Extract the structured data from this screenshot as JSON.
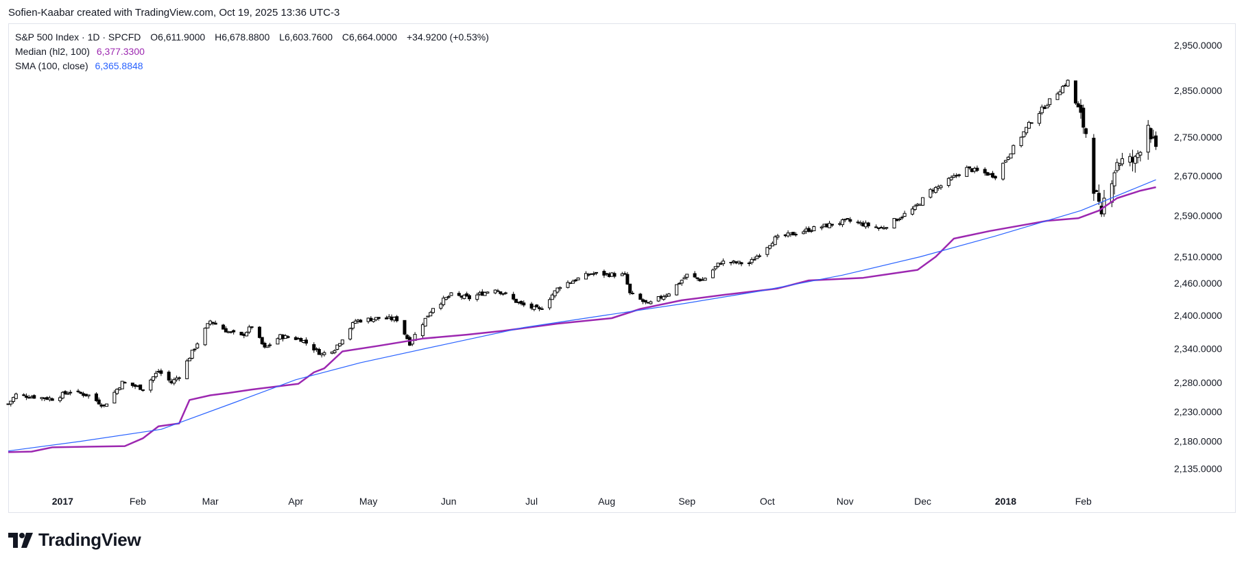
{
  "credit": "Sofien-Kaabar created with TradingView.com, Oct 19, 2025 13:36 UTC-3",
  "legend": {
    "symbol": "S&P 500 Index · 1D · SPCFD",
    "open": "O6,611.9000",
    "high": "H6,678.8800",
    "low": "L6,603.7600",
    "close": "C6,664.0000",
    "change": "+34.9200 (+0.53%)",
    "median_label": "Median (hl2, 100)",
    "median_value": "6,377.3300",
    "sma_label": "SMA (100, close)",
    "sma_value": "6,365.8848"
  },
  "brand": {
    "name": "TradingView",
    "icon": "tradingview-logo-icon"
  },
  "colors": {
    "median": "#9c27b0",
    "sma": "#2962ff",
    "candle": "#000000",
    "axis_text": "#131722",
    "border": "#e0e3eb"
  },
  "chart_data": {
    "type": "candlestick",
    "price_scale": "logarithmic",
    "y_ticks": [
      {
        "value": 2950,
        "label": "2,950.0000"
      },
      {
        "value": 2850,
        "label": "2,850.0000"
      },
      {
        "value": 2750,
        "label": "2,750.0000"
      },
      {
        "value": 2670,
        "label": "2,670.0000"
      },
      {
        "value": 2590,
        "label": "2,590.0000"
      },
      {
        "value": 2510,
        "label": "2,510.0000"
      },
      {
        "value": 2460,
        "label": "2,460.0000"
      },
      {
        "value": 2400,
        "label": "2,400.0000"
      },
      {
        "value": 2340,
        "label": "2,340.0000"
      },
      {
        "value": 2280,
        "label": "2,280.0000"
      },
      {
        "value": 2230,
        "label": "2,230.0000"
      },
      {
        "value": 2180,
        "label": "2,180.0000"
      },
      {
        "value": 2135,
        "label": "2,135.0000"
      }
    ],
    "x_ticks": [
      {
        "date": "2017-01-03",
        "label": "2017",
        "bold": true
      },
      {
        "date": "2017-02-01",
        "label": "Feb",
        "bold": false
      },
      {
        "date": "2017-03-01",
        "label": "Mar",
        "bold": false
      },
      {
        "date": "2017-04-03",
        "label": "Apr",
        "bold": false
      },
      {
        "date": "2017-05-01",
        "label": "May",
        "bold": false
      },
      {
        "date": "2017-06-01",
        "label": "Jun",
        "bold": false
      },
      {
        "date": "2017-07-03",
        "label": "Jul",
        "bold": false
      },
      {
        "date": "2017-08-01",
        "label": "Aug",
        "bold": false
      },
      {
        "date": "2017-09-01",
        "label": "Sep",
        "bold": false
      },
      {
        "date": "2017-10-02",
        "label": "Oct",
        "bold": false
      },
      {
        "date": "2017-11-01",
        "label": "Nov",
        "bold": false
      },
      {
        "date": "2017-12-01",
        "label": "Dec",
        "bold": false
      },
      {
        "date": "2018-01-02",
        "label": "2018",
        "bold": true
      },
      {
        "date": "2018-02-01",
        "label": "Feb",
        "bold": false
      }
    ],
    "x_range": [
      "2016-12-13",
      "2018-03-08"
    ],
    "y_range": [
      2100,
      3000
    ],
    "close_path": [
      [
        "2016-12-13",
        2243
      ],
      [
        "2016-12-16",
        2259
      ],
      [
        "2016-12-30",
        2252
      ],
      [
        "2017-01-06",
        2265
      ],
      [
        "2017-01-13",
        2258
      ],
      [
        "2017-01-19",
        2240
      ],
      [
        "2017-01-26",
        2280
      ],
      [
        "2017-02-03",
        2270
      ],
      [
        "2017-02-09",
        2300
      ],
      [
        "2017-02-14",
        2280
      ],
      [
        "2017-02-17",
        2292
      ],
      [
        "2017-02-24",
        2350
      ],
      [
        "2017-03-01",
        2390
      ],
      [
        "2017-03-08",
        2370
      ],
      [
        "2017-03-13",
        2362
      ],
      [
        "2017-03-17",
        2380
      ],
      [
        "2017-03-22",
        2340
      ],
      [
        "2017-03-28",
        2362
      ],
      [
        "2017-04-05",
        2357
      ],
      [
        "2017-04-13",
        2330
      ],
      [
        "2017-04-18",
        2340
      ],
      [
        "2017-04-26",
        2390
      ],
      [
        "2017-05-05",
        2395
      ],
      [
        "2017-05-12",
        2393
      ],
      [
        "2017-05-17",
        2350
      ],
      [
        "2017-05-26",
        2415
      ],
      [
        "2017-06-02",
        2438
      ],
      [
        "2017-06-09",
        2432
      ],
      [
        "2017-06-19",
        2450
      ],
      [
        "2017-06-29",
        2420
      ],
      [
        "2017-07-06",
        2410
      ],
      [
        "2017-07-14",
        2455
      ],
      [
        "2017-07-26",
        2478
      ],
      [
        "2017-08-08",
        2475
      ],
      [
        "2017-08-10",
        2440
      ],
      [
        "2017-08-17",
        2420
      ],
      [
        "2017-08-25",
        2442
      ],
      [
        "2017-09-01",
        2475
      ],
      [
        "2017-09-07",
        2465
      ],
      [
        "2017-09-14",
        2500
      ],
      [
        "2017-09-25",
        2497
      ],
      [
        "2017-10-05",
        2545
      ],
      [
        "2017-10-20",
        2565
      ],
      [
        "2017-11-02",
        2580
      ],
      [
        "2017-11-15",
        2565
      ],
      [
        "2017-11-28",
        2605
      ],
      [
        "2017-12-04",
        2640
      ],
      [
        "2017-12-08",
        2650
      ],
      [
        "2017-12-18",
        2685
      ],
      [
        "2017-12-29",
        2670
      ],
      [
        "2018-01-04",
        2720
      ],
      [
        "2018-01-12",
        2785
      ],
      [
        "2018-01-26",
        2870
      ],
      [
        "2018-02-02",
        2760
      ],
      [
        "2018-02-05",
        2650
      ],
      [
        "2018-02-08",
        2580
      ],
      [
        "2018-02-09",
        2620
      ],
      [
        "2018-02-14",
        2700
      ],
      [
        "2018-02-21",
        2700
      ],
      [
        "2018-02-26",
        2780
      ],
      [
        "2018-03-01",
        2715
      ]
    ],
    "series": [
      {
        "name": "Median (hl2, 100)",
        "color": "#9c27b0",
        "points": [
          [
            "2016-12-13",
            2162
          ],
          [
            "2016-12-22",
            2163
          ],
          [
            "2016-12-30",
            2170
          ],
          [
            "2017-01-27",
            2172
          ],
          [
            "2017-02-03",
            2185
          ],
          [
            "2017-02-09",
            2205
          ],
          [
            "2017-02-17",
            2210
          ],
          [
            "2017-02-21",
            2250
          ],
          [
            "2017-03-01",
            2258
          ],
          [
            "2017-03-08",
            2262
          ],
          [
            "2017-03-17",
            2268
          ],
          [
            "2017-04-04",
            2278
          ],
          [
            "2017-04-10",
            2298
          ],
          [
            "2017-04-14",
            2305
          ],
          [
            "2017-04-21",
            2335
          ],
          [
            "2017-05-05",
            2345
          ],
          [
            "2017-05-22",
            2358
          ],
          [
            "2017-06-08",
            2365
          ],
          [
            "2017-06-22",
            2372
          ],
          [
            "2017-07-13",
            2385
          ],
          [
            "2017-08-03",
            2395
          ],
          [
            "2017-08-14",
            2412
          ],
          [
            "2017-08-30",
            2428
          ],
          [
            "2017-09-15",
            2438
          ],
          [
            "2017-10-06",
            2450
          ],
          [
            "2017-10-18",
            2465
          ],
          [
            "2017-11-08",
            2470
          ],
          [
            "2017-11-29",
            2485
          ],
          [
            "2017-12-06",
            2510
          ],
          [
            "2017-12-13",
            2545
          ],
          [
            "2017-12-27",
            2560
          ],
          [
            "2018-01-18",
            2580
          ],
          [
            "2018-01-30",
            2585
          ],
          [
            "2018-02-07",
            2600
          ],
          [
            "2018-02-14",
            2625
          ],
          [
            "2018-02-23",
            2640
          ],
          [
            "2018-03-01",
            2647
          ]
        ]
      },
      {
        "name": "SMA (100, close)",
        "color": "#2962ff",
        "points": [
          [
            "2016-12-13",
            2164
          ],
          [
            "2017-01-10",
            2180
          ],
          [
            "2017-02-10",
            2200
          ],
          [
            "2017-03-10",
            2245
          ],
          [
            "2017-04-03",
            2285
          ],
          [
            "2017-04-28",
            2315
          ],
          [
            "2017-05-31",
            2348
          ],
          [
            "2017-06-30",
            2378
          ],
          [
            "2017-07-31",
            2400
          ],
          [
            "2017-08-31",
            2422
          ],
          [
            "2017-09-29",
            2445
          ],
          [
            "2017-10-31",
            2475
          ],
          [
            "2017-11-30",
            2510
          ],
          [
            "2017-12-29",
            2550
          ],
          [
            "2018-01-31",
            2600
          ],
          [
            "2018-02-28",
            2660
          ],
          [
            "2018-03-01",
            2662
          ]
        ]
      }
    ]
  }
}
